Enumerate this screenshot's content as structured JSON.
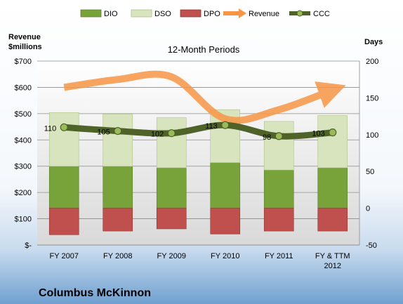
{
  "chart_data": {
    "type": "bar",
    "title": "12-Month Periods",
    "company": "Columbus McKinnon",
    "left_axis": {
      "label_line1": "Revenue",
      "label_line2": "$millions",
      "ylim": [
        0,
        700
      ],
      "ticks": [
        0,
        100,
        200,
        300,
        400,
        500,
        600,
        700
      ],
      "tick_labels": [
        "$-",
        "$100",
        "$200",
        "$300",
        "$400",
        "$500",
        "$600",
        "$700"
      ]
    },
    "right_axis": {
      "label": "Days",
      "ylim": [
        -50,
        200
      ],
      "ticks": [
        -50,
        0,
        50,
        100,
        150,
        200
      ],
      "tick_labels": [
        "-50",
        "0",
        "50",
        "100",
        "150",
        "200"
      ]
    },
    "categories": [
      "FY 2007",
      "FY 2008",
      "FY 2009",
      "FY 2010",
      "FY 2011",
      "FY & TTM 2012"
    ],
    "series": [
      {
        "name": "DIO",
        "axis": "right",
        "values": [
          57,
          57,
          55,
          62,
          52,
          55
        ],
        "color": "#77A33A"
      },
      {
        "name": "DSO",
        "axis": "right",
        "values": [
          73,
          71,
          68,
          72,
          66,
          71
        ],
        "color": "#D7E4BD"
      },
      {
        "name": "DPO",
        "axis": "right",
        "values": [
          -36,
          -31,
          -28,
          -35,
          -31,
          -31
        ],
        "color": "#C0504D"
      },
      {
        "name": "Revenue",
        "axis": "left",
        "values": [
          600,
          630,
          640,
          480,
          515,
          590
        ],
        "color": "#F79646"
      },
      {
        "name": "CCC",
        "axis": "right",
        "values": [
          110,
          105,
          102,
          113,
          98,
          103
        ],
        "color": "#4F6228"
      }
    ],
    "ccc_labels": [
      "110",
      "105",
      "102",
      "113",
      "98",
      "103"
    ],
    "legend": [
      "DIO",
      "DSO",
      "DPO",
      "Revenue",
      "CCC"
    ],
    "legend_position": "top",
    "grid": true
  }
}
